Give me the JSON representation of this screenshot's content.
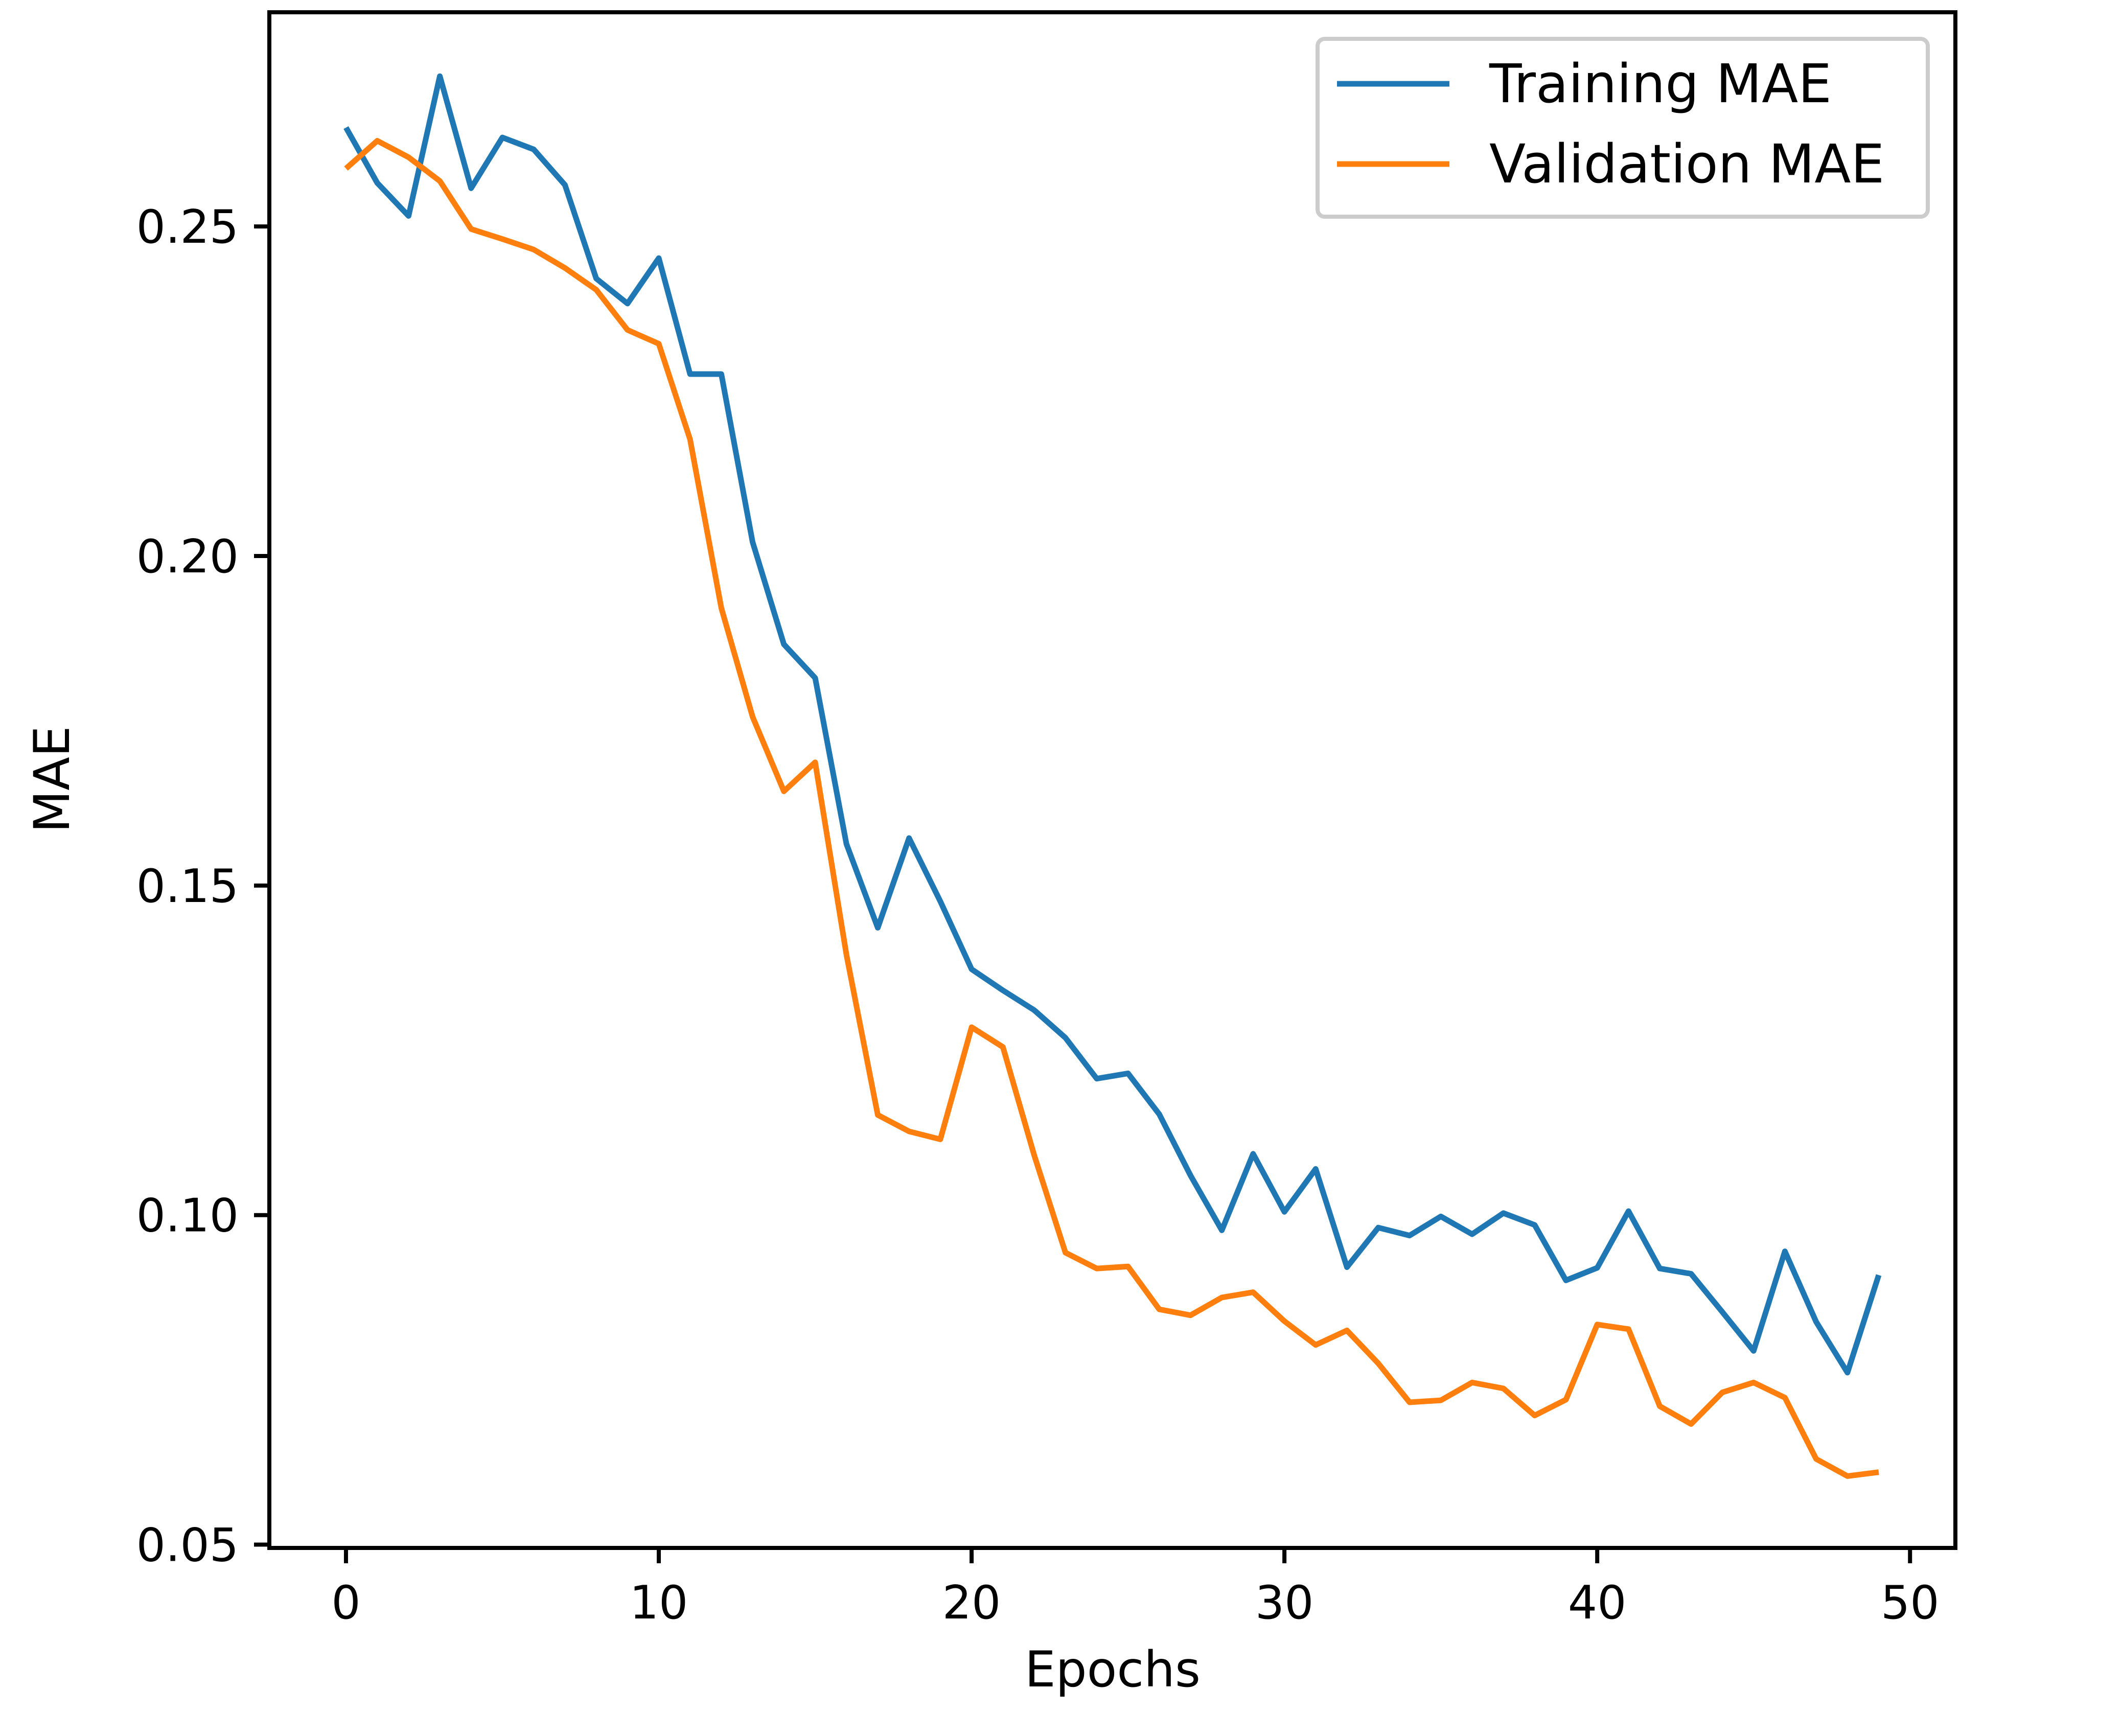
{
  "chart_data": {
    "type": "line",
    "title": "",
    "xlabel": "Epochs",
    "ylabel": "MAE",
    "xlim": [
      -2.45,
      51.45
    ],
    "ylim": [
      0.0495,
      0.2825
    ],
    "xticks": [
      0,
      10,
      20,
      30,
      40,
      50
    ],
    "xtick_labels": [
      "0",
      "10",
      "20",
      "30",
      "40",
      "50"
    ],
    "yticks": [
      0.05,
      0.1,
      0.15,
      0.2,
      0.25
    ],
    "ytick_labels": [
      "0.05",
      "0.10",
      "0.15",
      "0.20",
      "0.25"
    ],
    "grid": false,
    "legend_position": "top-right",
    "x": [
      0,
      1,
      2,
      3,
      4,
      5,
      6,
      7,
      8,
      9,
      10,
      11,
      12,
      13,
      14,
      15,
      16,
      17,
      18,
      19,
      20,
      21,
      22,
      23,
      24,
      25,
      26,
      27,
      28,
      29,
      30,
      31,
      32,
      33,
      34,
      35,
      36,
      37,
      38,
      39,
      40,
      41,
      42,
      43,
      44,
      45,
      46,
      47,
      48,
      49
    ],
    "series": [
      {
        "name": "Training MAE",
        "color": "#1f77b4",
        "values": [
          0.265,
          0.2566,
          0.2516,
          0.2728,
          0.2558,
          0.2635,
          0.2617,
          0.2563,
          0.2421,
          0.2383,
          0.2452,
          0.2276,
          0.2276,
          0.2021,
          0.1866,
          0.1815,
          0.1563,
          0.1436,
          0.1572,
          0.1476,
          0.1373,
          0.1341,
          0.1311,
          0.1269,
          0.1207,
          0.1215,
          0.1153,
          0.106,
          0.0977,
          0.1093,
          0.1005,
          0.107,
          0.0921,
          0.0981,
          0.0969,
          0.0998,
          0.0971,
          0.1003,
          0.0985,
          0.0901,
          0.092,
          0.1006,
          0.0919,
          0.0911,
          0.0853,
          0.0794,
          0.0945,
          0.0838,
          0.0761,
          0.0909
        ]
      },
      {
        "name": "Validation MAE",
        "color": "#ff7f0e",
        "values": [
          0.2588,
          0.263,
          0.2605,
          0.2569,
          0.2496,
          0.2481,
          0.2465,
          0.2437,
          0.2404,
          0.2343,
          0.2322,
          0.2177,
          0.1921,
          0.1756,
          0.1643,
          0.1687,
          0.1395,
          0.1152,
          0.1127,
          0.1115,
          0.1285,
          0.1255,
          0.1091,
          0.0943,
          0.0919,
          0.0922,
          0.0857,
          0.0848,
          0.0875,
          0.0883,
          0.0839,
          0.0803,
          0.0825,
          0.0775,
          0.0716,
          0.0719,
          0.0746,
          0.0737,
          0.0696,
          0.072,
          0.0834,
          0.0827,
          0.071,
          0.0683,
          0.0731,
          0.0746,
          0.0723,
          0.063,
          0.0604,
          0.061
        ]
      }
    ]
  }
}
